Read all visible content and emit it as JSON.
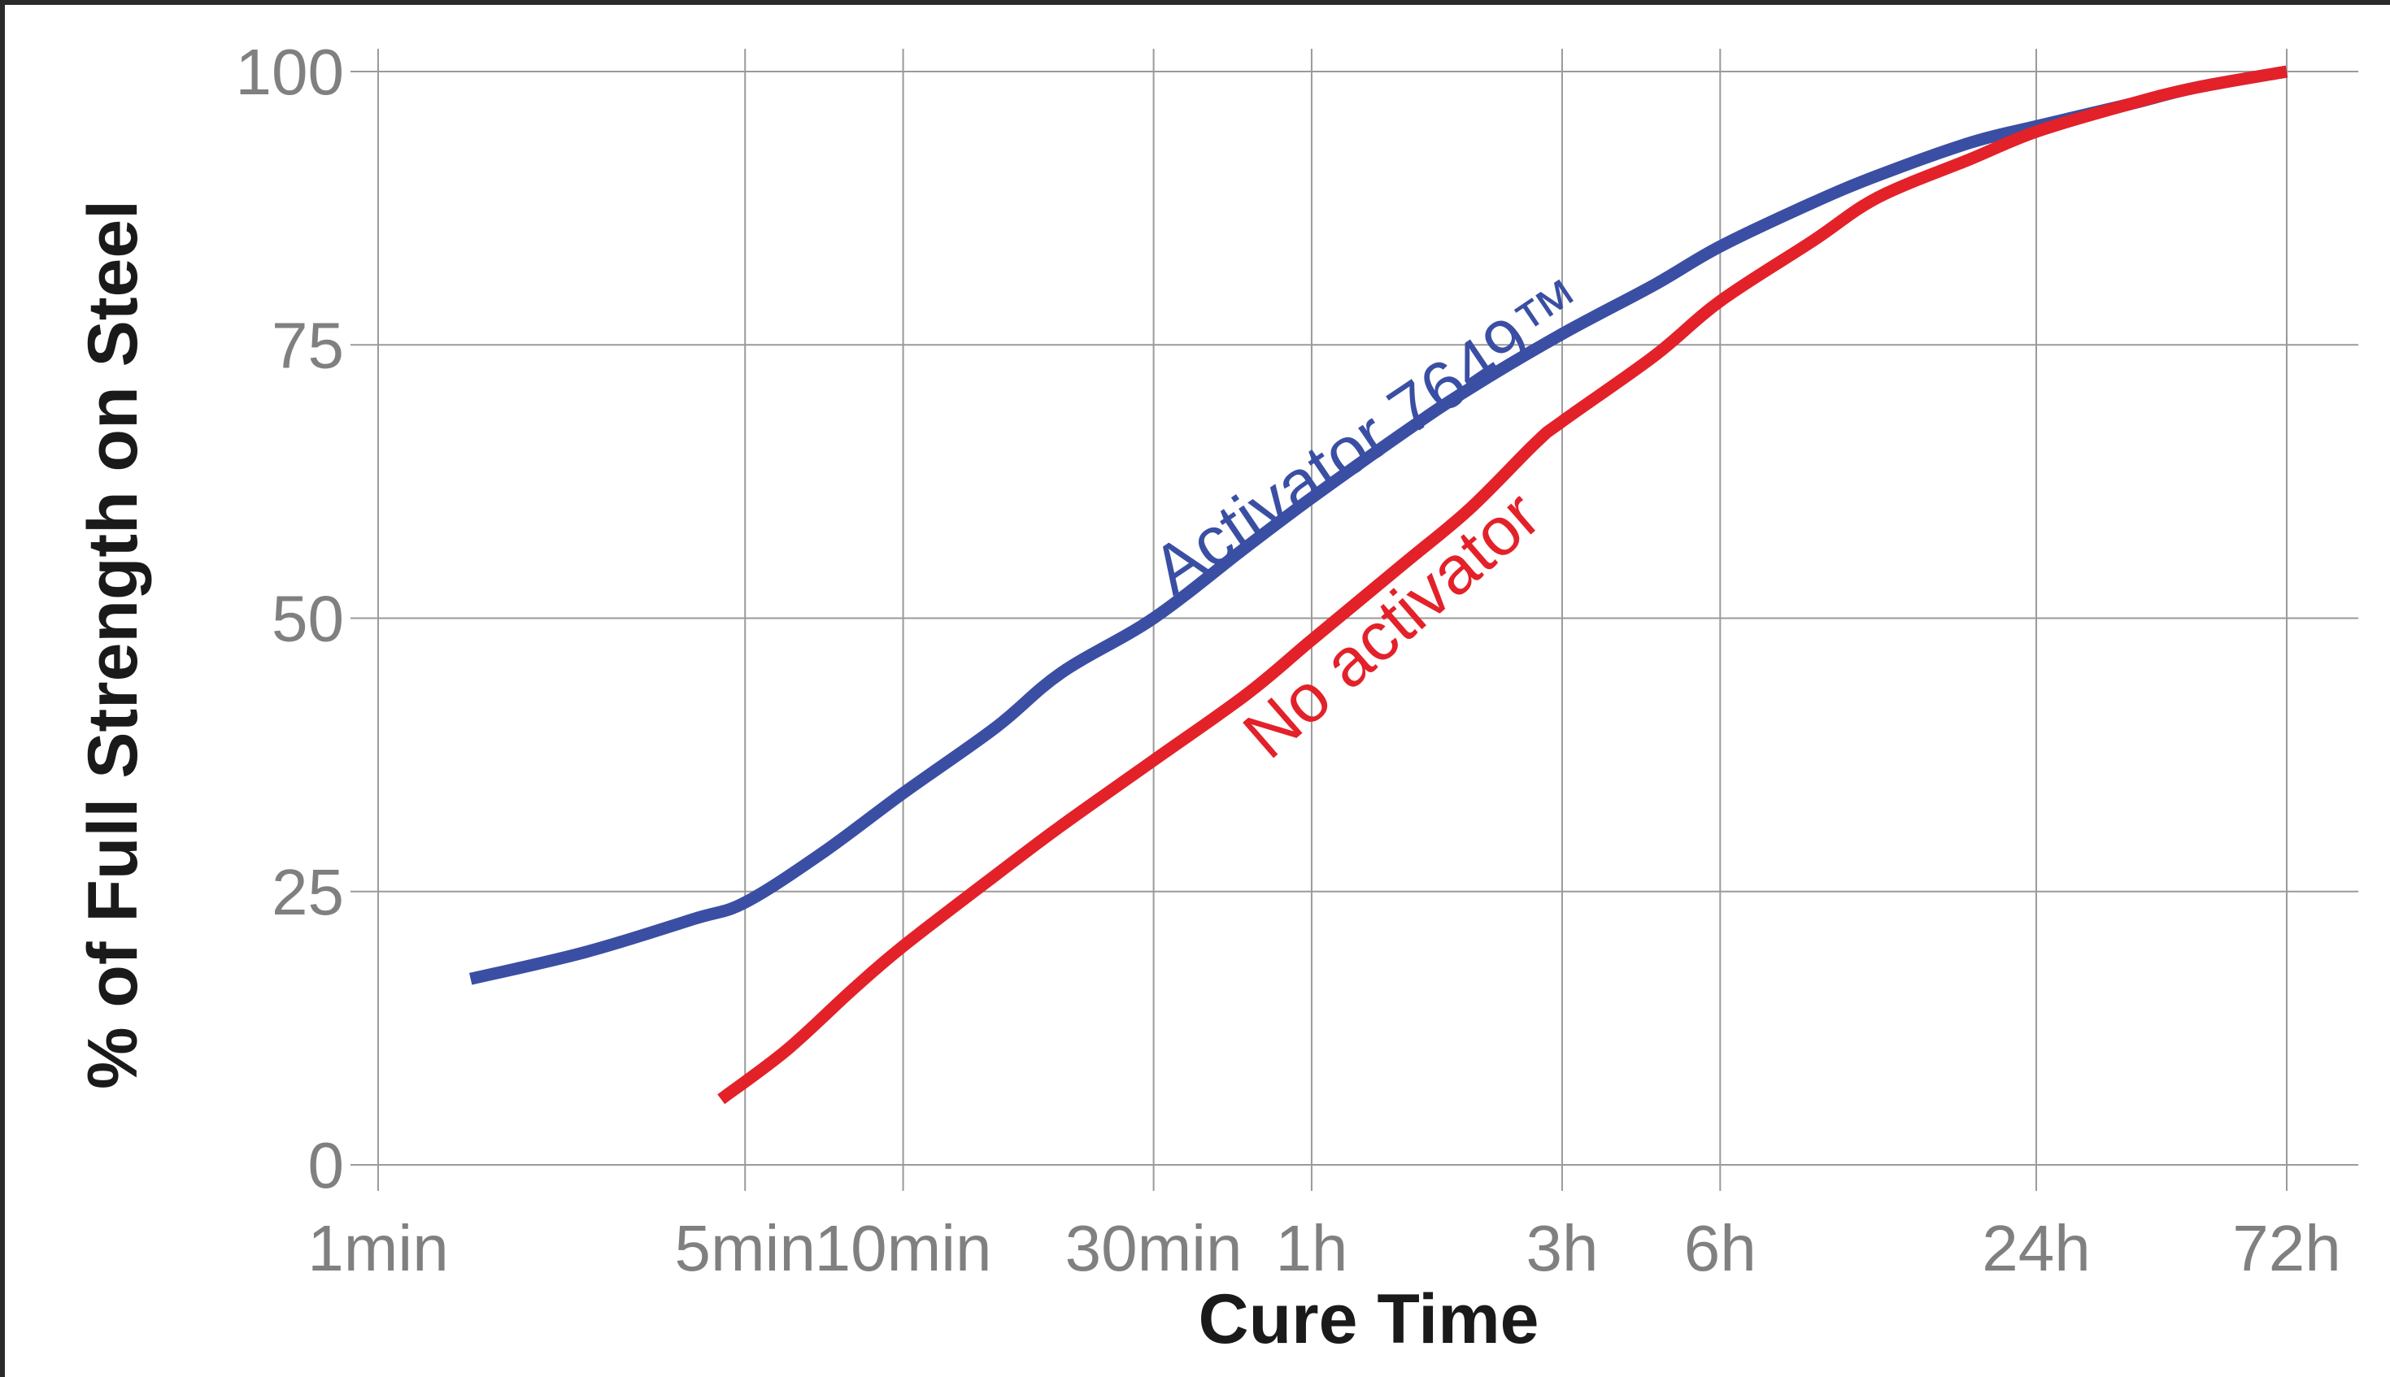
{
  "chart_data": {
    "type": "line",
    "xlabel": "Cure Time",
    "ylabel": "% of Full Strength on Steel",
    "x_scale": "log",
    "x_unit": "min",
    "xlim": [
      1,
      4320
    ],
    "ylim": [
      0,
      100
    ],
    "grid": true,
    "x_ticks": [
      {
        "label": "1min",
        "value": 1
      },
      {
        "label": "5min",
        "value": 5
      },
      {
        "label": "10min",
        "value": 10
      },
      {
        "label": "30min",
        "value": 30
      },
      {
        "label": "1h",
        "value": 60
      },
      {
        "label": "3h",
        "value": 180
      },
      {
        "label": "6h",
        "value": 360
      },
      {
        "label": "24h",
        "value": 1440
      },
      {
        "label": "72h",
        "value": 4320
      }
    ],
    "y_ticks": [
      0,
      25,
      50,
      75,
      100
    ],
    "series": [
      {
        "name": "Activator 7649™",
        "color": "#3a4fa3",
        "x": [
          1.5,
          2.5,
          4,
          5,
          7,
          10,
          15,
          20,
          30,
          45,
          60,
          90,
          120,
          180,
          270,
          360,
          540,
          720,
          1080,
          1440,
          2160,
          2880,
          4320
        ],
        "y": [
          17,
          19.5,
          22.5,
          24,
          28.5,
          34,
          40,
          45,
          50,
          56.5,
          61,
          67,
          71,
          76,
          80.5,
          84,
          88,
          90.5,
          93.5,
          95,
          97,
          98.5,
          100
        ]
      },
      {
        "name": "No activator",
        "color": "#e32129",
        "x": [
          4.5,
          6,
          8,
          10,
          15,
          20,
          30,
          45,
          60,
          90,
          120,
          160,
          180,
          270,
          360,
          540,
          720,
          1080,
          1440,
          2160,
          2880,
          4320
        ],
        "y": [
          6,
          10.5,
          16,
          20,
          26.5,
          31,
          37,
          43,
          48,
          55,
          60,
          66,
          68,
          74,
          79,
          84.5,
          88.5,
          92,
          94.5,
          97,
          98.5,
          100
        ]
      }
    ]
  }
}
